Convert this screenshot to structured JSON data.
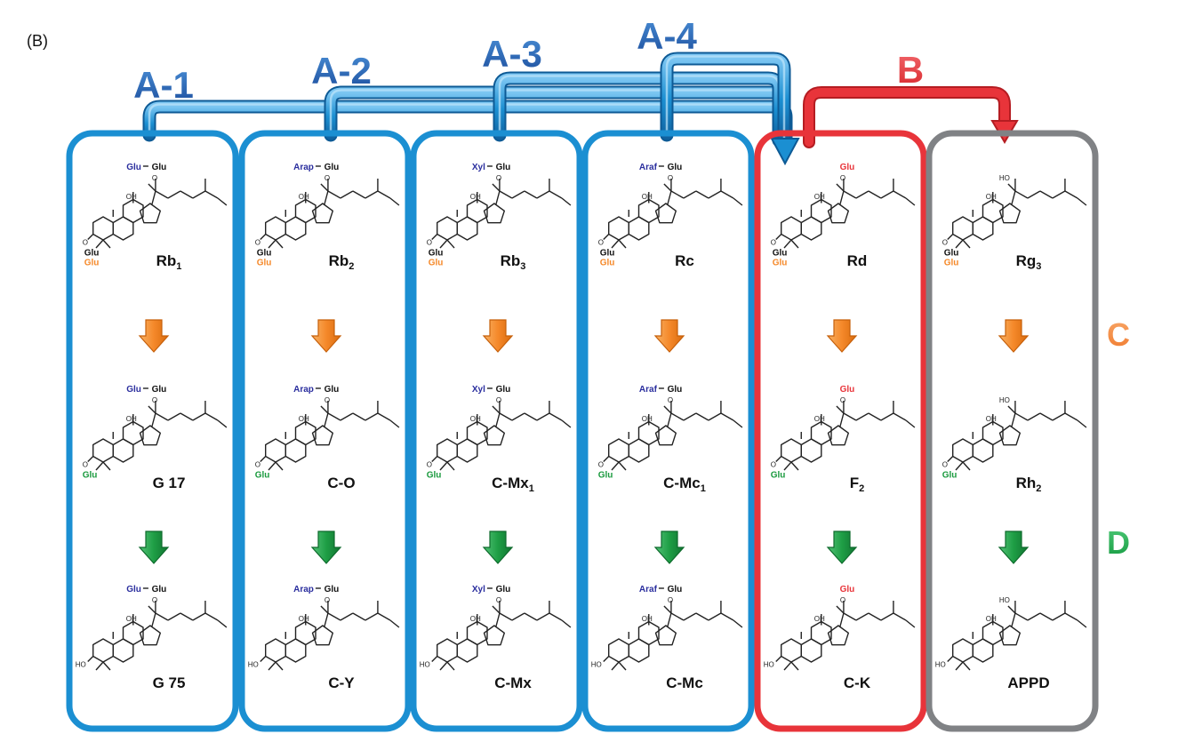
{
  "panel_label": "(B)",
  "colors": {
    "blue_box": "#1b8fd2",
    "blue_label": "#2566b8",
    "red": "#e8343a",
    "gray": "#808285",
    "orange": "#f5892a",
    "green": "#1e9e45",
    "sugar_blue": "#2a2e9e",
    "sugar_orange": "#f5892a",
    "sugar_green": "#1a9a3e",
    "sugar_red": "#e8343a"
  },
  "routes": {
    "a1": "A-1",
    "a2": "A-2",
    "a3": "A-3",
    "a4": "A-4",
    "b": "B"
  },
  "side_labels": {
    "c": "C",
    "d": "D"
  },
  "columns": [
    {
      "id": "rb1",
      "border": "blue",
      "rows": [
        {
          "top_sugar": "Glu",
          "top_sugar_color": "blue",
          "bottom_sugars": [
            "Glu",
            "Glu"
          ],
          "name": "Rb",
          "sub": "1"
        },
        {
          "top_sugar": "Glu",
          "top_sugar_color": "blue",
          "bottom_sugars": [
            "Glu"
          ],
          "name": "G 17",
          "sub": ""
        },
        {
          "top_sugar": "Glu",
          "top_sugar_color": "blue",
          "bottom_sugars": [],
          "name": "G 75",
          "sub": ""
        }
      ]
    },
    {
      "id": "rb2",
      "border": "blue",
      "rows": [
        {
          "top_sugar": "Arap",
          "top_sugar_color": "blue",
          "bottom_sugars": [
            "Glu",
            "Glu"
          ],
          "name": "Rb",
          "sub": "2"
        },
        {
          "top_sugar": "Arap",
          "top_sugar_color": "blue",
          "bottom_sugars": [
            "Glu"
          ],
          "name": "C-O",
          "sub": ""
        },
        {
          "top_sugar": "Arap",
          "top_sugar_color": "blue",
          "bottom_sugars": [],
          "name": "C-Y",
          "sub": ""
        }
      ]
    },
    {
      "id": "rb3",
      "border": "blue",
      "rows": [
        {
          "top_sugar": "Xyl",
          "top_sugar_color": "blue",
          "bottom_sugars": [
            "Glu",
            "Glu"
          ],
          "name": "Rb",
          "sub": "3"
        },
        {
          "top_sugar": "Xyl",
          "top_sugar_color": "blue",
          "bottom_sugars": [
            "Glu"
          ],
          "name": "C-Mx",
          "sub": "1"
        },
        {
          "top_sugar": "Xyl",
          "top_sugar_color": "blue",
          "bottom_sugars": [],
          "name": "C-Mx",
          "sub": ""
        }
      ]
    },
    {
      "id": "rc",
      "border": "blue",
      "rows": [
        {
          "top_sugar": "Araf",
          "top_sugar_color": "blue",
          "bottom_sugars": [
            "Glu",
            "Glu"
          ],
          "name": "Rc",
          "sub": ""
        },
        {
          "top_sugar": "Araf",
          "top_sugar_color": "blue",
          "bottom_sugars": [
            "Glu"
          ],
          "name": "C-Mc",
          "sub": "1"
        },
        {
          "top_sugar": "Araf",
          "top_sugar_color": "blue",
          "bottom_sugars": [],
          "name": "C-Mc",
          "sub": ""
        }
      ]
    },
    {
      "id": "rd",
      "border": "red",
      "rows": [
        {
          "top_sugar": "",
          "top_sugar_color": "red",
          "bottom_sugars": [
            "Glu",
            "Glu"
          ],
          "name": "Rd",
          "sub": ""
        },
        {
          "top_sugar": "",
          "top_sugar_color": "red",
          "bottom_sugars": [
            "Glu"
          ],
          "name": "F",
          "sub": "2"
        },
        {
          "top_sugar": "",
          "top_sugar_color": "red",
          "bottom_sugars": [],
          "name": "C-K",
          "sub": ""
        }
      ]
    },
    {
      "id": "rg3",
      "border": "gray",
      "rows": [
        {
          "top_sugar": "",
          "top_sugar_color": "none",
          "bottom_sugars": [
            "Glu",
            "Glu"
          ],
          "name": "Rg",
          "sub": "3"
        },
        {
          "top_sugar": "",
          "top_sugar_color": "none",
          "bottom_sugars": [
            "Glu"
          ],
          "name": "Rh",
          "sub": "2"
        },
        {
          "top_sugar": "",
          "top_sugar_color": "none",
          "bottom_sugars": [],
          "name": "APPD",
          "sub": ""
        }
      ]
    }
  ],
  "chem": {
    "glu": "Glu",
    "oh": "OH",
    "ho": "HO",
    "o": "O"
  }
}
